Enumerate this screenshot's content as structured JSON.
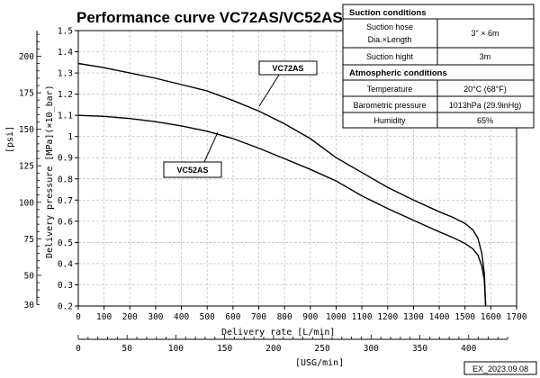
{
  "chart_data": {
    "type": "line",
    "title": "Performance curve VC72AS/VC52AS",
    "xlabel": "Delivery rate  [L/min]",
    "ylabel": "Delivery pressure  [MPa](×10_bar)",
    "xlim": [
      0,
      1700
    ],
    "ylim": [
      0.2,
      1.5
    ],
    "xticks": [
      "0",
      "100",
      "200",
      "300",
      "400",
      "500",
      "600",
      "700",
      "800",
      "900",
      "1000",
      "1100",
      "1200",
      "1300",
      "1400",
      "1500",
      "1600",
      "1700"
    ],
    "yticks": [
      "0.2",
      "0.3",
      "0.4",
      "0.5",
      "0.6",
      "0.7",
      "0.8",
      "0.9",
      "1",
      "1.1",
      "1.2",
      "1.3",
      "1.4",
      "1.5"
    ],
    "secondary_y": {
      "label": "[psi]",
      "ticks": [
        "30",
        "50",
        "75",
        "100",
        "125",
        "150",
        "175",
        "200"
      ]
    },
    "secondary_x": {
      "label": "[USG/min]",
      "ticks": [
        "0",
        "50",
        "100",
        "150",
        "200",
        "250",
        "300",
        "350",
        "400"
      ]
    },
    "series": [
      {
        "name": "VC72AS",
        "x": [
          0,
          100,
          200,
          300,
          400,
          500,
          600,
          700,
          800,
          900,
          1000,
          1100,
          1200,
          1300,
          1400,
          1450,
          1500,
          1530,
          1550,
          1565,
          1575,
          1580
        ],
        "y": [
          1.345,
          1.325,
          1.3,
          1.275,
          1.245,
          1.215,
          1.17,
          1.12,
          1.06,
          0.99,
          0.9,
          0.83,
          0.76,
          0.7,
          0.645,
          0.62,
          0.59,
          0.56,
          0.52,
          0.45,
          0.35,
          0.2
        ]
      },
      {
        "name": "VC52AS",
        "x": [
          0,
          100,
          200,
          300,
          400,
          500,
          600,
          700,
          800,
          900,
          1000,
          1100,
          1200,
          1300,
          1400,
          1450,
          1500,
          1530,
          1550,
          1565,
          1575,
          1580
        ],
        "y": [
          1.1,
          1.095,
          1.085,
          1.07,
          1.05,
          1.025,
          0.99,
          0.945,
          0.895,
          0.845,
          0.79,
          0.72,
          0.66,
          0.605,
          0.55,
          0.525,
          0.495,
          0.47,
          0.44,
          0.39,
          0.32,
          0.2
        ]
      }
    ],
    "callouts": [
      {
        "text": "VC72AS",
        "series": "VC72AS"
      },
      {
        "text": "VC52AS",
        "series": "VC52AS"
      }
    ]
  },
  "conditions": {
    "suction_header": "Suction conditions",
    "hose_label_1": "Suction hose",
    "hose_label_2": "Dia.×Length",
    "hose_value": "3\" × 6m",
    "height_label": "Suction hight",
    "height_value": "3m",
    "atmos_header": "Atmospheric conditions",
    "temp_label": "Temperature",
    "temp_value": "20°C (68°F)",
    "baro_label": "Barometric pressure",
    "baro_value": "1013hPa (29.9inHg)",
    "humidity_label": "Humidity",
    "humidity_value": "65%"
  },
  "footer": "EX_2023.09.08"
}
